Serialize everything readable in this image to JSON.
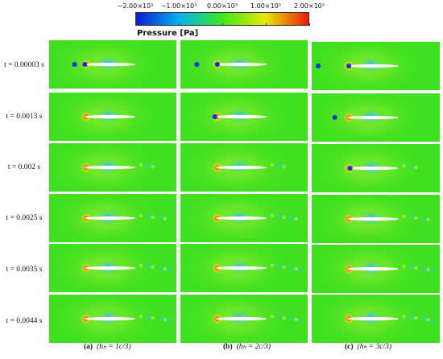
{
  "colorbar": {
    "ticks": [
      "−2.00×10³",
      "−1.00×10³",
      "0.00×10³",
      "1.00×10³",
      "2.00×10³"
    ],
    "title": "Pressure [Pa]",
    "colors": [
      "#0c1cd4",
      "#00b4f0",
      "#3ee81c",
      "#e8e800",
      "#e81c0c"
    ]
  },
  "rows": [
    {
      "label": "t = 0.00003 s"
    },
    {
      "label": "t = 0.0013 s"
    },
    {
      "label": "t = 0.002 s"
    },
    {
      "label": "t = 0.0025 s"
    },
    {
      "label": "t = 0.0035 s"
    },
    {
      "label": "t = 0.0044 s"
    }
  ],
  "captions": [
    {
      "letter": "(a)",
      "text": "(hₕ = 1c/3)"
    },
    {
      "letter": "(b)",
      "text": "(hₕ = 2c/3)"
    },
    {
      "letter": "(c)",
      "text": "(hₕ = 3c/3)"
    }
  ]
}
